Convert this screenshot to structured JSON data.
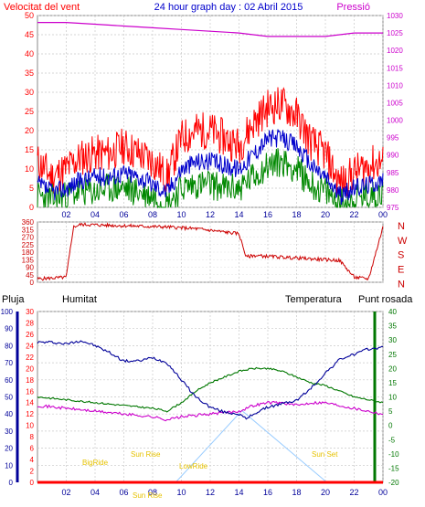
{
  "header": {
    "left_label": "Velocitat del vent",
    "title": "24 hour graph day : 02 Abril 2015",
    "right_label": "Pressió"
  },
  "colors": {
    "wind_gust": "#ff0000",
    "wind_avg": "#0000cc",
    "wind_min": "#008800",
    "pressure": "#cc00cc",
    "direction": "#cc0000",
    "humidity": "#000099",
    "temperature": "#007700",
    "dewpoint": "#cc00cc",
    "rain": "#ff0000",
    "sun": "#99ccff",
    "sun_labels": "#e6c200"
  },
  "x_ticks": [
    "02",
    "04",
    "06",
    "08",
    "10",
    "12",
    "14",
    "16",
    "18",
    "20",
    "22",
    "00"
  ],
  "wind_panel": {
    "left_ticks": [
      "0",
      "5",
      "10",
      "15",
      "20",
      "25",
      "30",
      "35",
      "40",
      "45",
      "50"
    ],
    "right_ticks": [
      "975",
      "980",
      "985",
      "990",
      "995",
      "1000",
      "1005",
      "1010",
      "1015",
      "1020",
      "1025",
      "1030"
    ]
  },
  "direction_panel": {
    "left_ticks": [
      "0",
      "45",
      "90",
      "135",
      "180",
      "225",
      "270",
      "315",
      "360"
    ],
    "compass": [
      "N",
      "W",
      "S",
      "E",
      "N"
    ]
  },
  "bottom_panel": {
    "labels": {
      "rain": "Pluja",
      "humidity": "Humitat",
      "temperature": "Temperatura",
      "dewpoint": "Punt rosada"
    },
    "humidity_ticks": [
      "0",
      "10",
      "20",
      "30",
      "40",
      "50",
      "60",
      "70",
      "80",
      "90",
      "100"
    ],
    "rain_ticks": [
      "0",
      "2",
      "4",
      "6",
      "8",
      "10",
      "12",
      "14",
      "16",
      "18",
      "20",
      "22",
      "24",
      "26",
      "28",
      "30"
    ],
    "temp_ticks": [
      "-20",
      "-15",
      "-10",
      "-5",
      "0",
      "5",
      "10",
      "15",
      "20",
      "25",
      "30",
      "35",
      "40"
    ],
    "sun_labels": {
      "bigride": "BigRide",
      "sun_rise": "Sun Rise",
      "sun_rise2": "Sun Rise",
      "lowride": "LowRide",
      "sun_set": "Sun Set"
    }
  },
  "chart_data": [
    {
      "type": "line",
      "title": "24 hour graph day : 02 Abril 2015",
      "ylabel": "Velocitat del vent",
      "y2label": "Pressió",
      "xlim": [
        0,
        24
      ],
      "ylim": [
        0,
        50
      ],
      "y2lim": [
        975,
        1030
      ],
      "series": [
        {
          "axis": "y2",
          "x": [
            0,
            2,
            4,
            6,
            8,
            10,
            12,
            14,
            16,
            18,
            20,
            22,
            24
          ],
          "values": [
            1028,
            1028,
            1027.5,
            1027,
            1026.5,
            1026,
            1025.5,
            1025,
            1024,
            1024,
            1024,
            1025,
            1025
          ]
        },
        {
          "x": [
            0,
            1,
            2,
            3,
            4,
            5,
            6,
            7,
            8,
            9,
            10,
            11,
            12,
            13,
            14,
            15,
            16,
            17,
            18,
            19,
            20,
            21,
            22,
            23,
            24
          ],
          "values": [
            12,
            8,
            10,
            13,
            14,
            14,
            16,
            14,
            12,
            8,
            18,
            20,
            20,
            18,
            16,
            22,
            26,
            27,
            24,
            17,
            14,
            6,
            9,
            11,
            12
          ]
        },
        {
          "x": [
            0,
            1,
            2,
            3,
            4,
            5,
            6,
            7,
            8,
            9,
            10,
            11,
            12,
            13,
            14,
            15,
            16,
            17,
            18,
            19,
            20,
            21,
            22,
            23,
            24
          ],
          "values": [
            6,
            4,
            5,
            7,
            8,
            8,
            9,
            8,
            6,
            4,
            10,
            12,
            12,
            11,
            10,
            14,
            18,
            18,
            16,
            11,
            8,
            3,
            5,
            6,
            7
          ]
        },
        {
          "x": [
            0,
            1,
            2,
            3,
            4,
            5,
            6,
            7,
            8,
            9,
            10,
            11,
            12,
            13,
            14,
            15,
            16,
            17,
            18,
            19,
            20,
            21,
            22,
            23,
            24
          ],
          "values": [
            3,
            2,
            3,
            4,
            4,
            5,
            5,
            4,
            3,
            1,
            5,
            6,
            6,
            5,
            5,
            8,
            11,
            12,
            10,
            6,
            4,
            1,
            2,
            3,
            4
          ]
        }
      ]
    },
    {
      "type": "line",
      "xlim": [
        0,
        24
      ],
      "ylim": [
        0,
        360
      ],
      "series": [
        {
          "x": [
            0,
            2,
            2.5,
            3,
            5,
            7,
            9,
            11,
            13,
            14,
            14.5,
            15,
            17,
            19,
            21,
            22,
            23,
            24
          ],
          "values": [
            20,
            30,
            330,
            345,
            340,
            335,
            330,
            320,
            300,
            290,
            150,
            160,
            150,
            140,
            130,
            30,
            20,
            330
          ]
        }
      ]
    },
    {
      "type": "line",
      "ylabel": "Humitat",
      "y2label": "Temperatura",
      "xlim": [
        0,
        24
      ],
      "ylim": [
        0,
        100
      ],
      "y2lim": [
        -20,
        40
      ],
      "series": [
        {
          "name": "Humitat",
          "axis": "y",
          "x": [
            0,
            1,
            2,
            3,
            4,
            5,
            6,
            7,
            8,
            9,
            10,
            11,
            12,
            13,
            14,
            14.5,
            15,
            16,
            17,
            18,
            19,
            20,
            21,
            22,
            23,
            24
          ],
          "values": [
            82,
            82,
            81,
            83,
            80,
            76,
            71,
            71,
            73,
            70,
            60,
            50,
            44,
            41,
            40,
            37,
            40,
            44,
            46,
            48,
            55,
            64,
            72,
            75,
            78,
            79
          ]
        },
        {
          "name": "Temperatura",
          "axis": "y2",
          "x": [
            0,
            2,
            4,
            6,
            8,
            9,
            10,
            11,
            12,
            13,
            14,
            15,
            16,
            17,
            18,
            19,
            20,
            21,
            22,
            23,
            24
          ],
          "values": [
            10,
            9,
            8,
            7,
            6,
            5,
            8,
            12,
            15,
            17,
            19,
            20,
            20,
            19,
            17,
            15,
            14,
            12,
            10,
            9,
            8
          ]
        },
        {
          "name": "Punt rosada",
          "axis": "y2",
          "x": [
            0,
            2,
            4,
            6,
            8,
            9,
            10,
            12,
            14,
            15,
            16,
            17,
            18,
            19,
            20,
            21,
            22,
            23,
            24
          ],
          "values": [
            7,
            6,
            5,
            4,
            3,
            2,
            3,
            4,
            5,
            7,
            8,
            8,
            7,
            8,
            8,
            7,
            6,
            5,
            4
          ]
        },
        {
          "name": "Pluja",
          "axis": "y3",
          "x": [
            0,
            24
          ],
          "values": [
            0,
            0
          ]
        }
      ]
    }
  ]
}
